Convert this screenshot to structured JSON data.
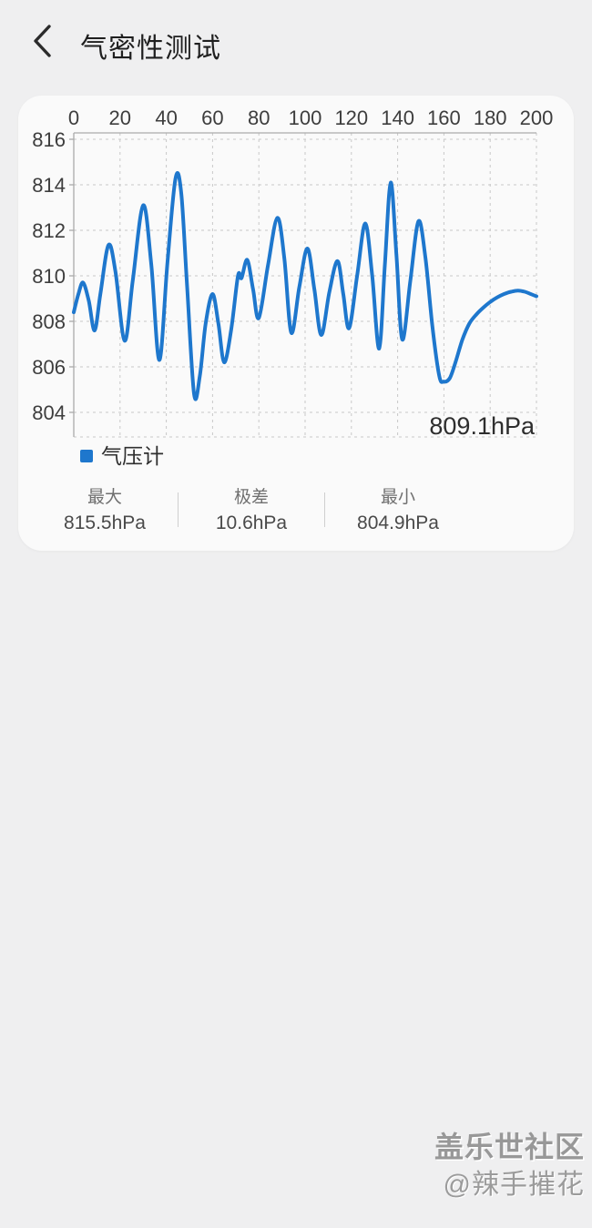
{
  "header": {
    "title": "气密性测试",
    "back_icon": "chevron-left-icon"
  },
  "chart_data": {
    "type": "line",
    "title": "",
    "xlabel": "",
    "ylabel": "",
    "x_ticks": [
      0,
      20,
      40,
      60,
      80,
      100,
      120,
      140,
      160,
      180,
      200
    ],
    "y_ticks": [
      816,
      814,
      812,
      810,
      808,
      806,
      804
    ],
    "xlim": [
      0,
      200
    ],
    "ylim": [
      802.9,
      816.3
    ],
    "grid": "dashed",
    "legend_position": "bottom-left",
    "current_value_label": "809.1hPa",
    "legend": [
      {
        "label": "气压计",
        "color": "#1e77cd"
      }
    ],
    "series": [
      {
        "name": "气压计",
        "color": "#1e77cd",
        "points": [
          [
            0,
            808.4
          ],
          [
            2,
            809.2
          ],
          [
            4,
            809.7
          ],
          [
            6.5,
            808.9
          ],
          [
            9,
            807.6
          ],
          [
            11.5,
            809.2
          ],
          [
            15,
            811.35
          ],
          [
            18,
            810.2
          ],
          [
            22,
            807.15
          ],
          [
            25.5,
            809.8
          ],
          [
            30,
            813.1
          ],
          [
            33.5,
            810.5
          ],
          [
            37,
            806.3
          ],
          [
            40.5,
            810.6
          ],
          [
            44,
            814.3
          ],
          [
            46.5,
            813.6
          ],
          [
            49,
            809.5
          ],
          [
            52,
            804.8
          ],
          [
            54.5,
            805.6
          ],
          [
            57,
            807.9
          ],
          [
            60,
            809.2
          ],
          [
            62.5,
            807.9
          ],
          [
            65,
            806.2
          ],
          [
            68,
            807.6
          ],
          [
            71,
            810.0
          ],
          [
            72.5,
            809.9
          ],
          [
            75,
            810.7
          ],
          [
            77.5,
            809.4
          ],
          [
            80,
            808.15
          ],
          [
            84,
            810.5
          ],
          [
            88,
            812.55
          ],
          [
            91,
            810.8
          ],
          [
            94,
            807.5
          ],
          [
            97.5,
            809.5
          ],
          [
            101,
            811.2
          ],
          [
            104,
            809.4
          ],
          [
            107,
            807.4
          ],
          [
            110.5,
            809.3
          ],
          [
            114,
            810.65
          ],
          [
            116.5,
            809.2
          ],
          [
            119,
            807.7
          ],
          [
            122.5,
            810.0
          ],
          [
            126,
            812.3
          ],
          [
            129,
            810.0
          ],
          [
            132,
            806.8
          ],
          [
            134.5,
            810.5
          ],
          [
            137,
            814.1
          ],
          [
            139.5,
            810.9
          ],
          [
            142,
            807.2
          ],
          [
            145.5,
            809.8
          ],
          [
            149,
            812.4
          ],
          [
            152,
            810.8
          ],
          [
            155,
            807.8
          ],
          [
            158,
            805.6
          ],
          [
            160,
            805.35
          ],
          [
            162.5,
            805.5
          ],
          [
            165,
            806.2
          ],
          [
            168,
            807.2
          ],
          [
            171,
            807.9
          ],
          [
            174,
            808.3
          ],
          [
            177,
            808.6
          ],
          [
            180,
            808.85
          ],
          [
            183,
            809.05
          ],
          [
            186,
            809.2
          ],
          [
            189,
            809.3
          ],
          [
            192,
            809.35
          ],
          [
            195,
            809.3
          ],
          [
            197.5,
            809.2
          ],
          [
            200,
            809.1
          ]
        ]
      }
    ]
  },
  "stats": {
    "items": [
      {
        "label": "最大",
        "value": "815.5hPa"
      },
      {
        "label": "极差",
        "value": "10.6hPa"
      },
      {
        "label": "最小",
        "value": "804.9hPa"
      }
    ]
  },
  "watermark": {
    "line1": "盖乐世社区",
    "line2": "@辣手摧花"
  },
  "colors": {
    "accent": "#1e77cd",
    "page_bg": "#efeff0",
    "card_bg": "#fafafa",
    "grid": "#c8c8c8",
    "axis": "#ababab",
    "axis_label": "#3d3d3d",
    "value_label": "#2e2e2e"
  }
}
